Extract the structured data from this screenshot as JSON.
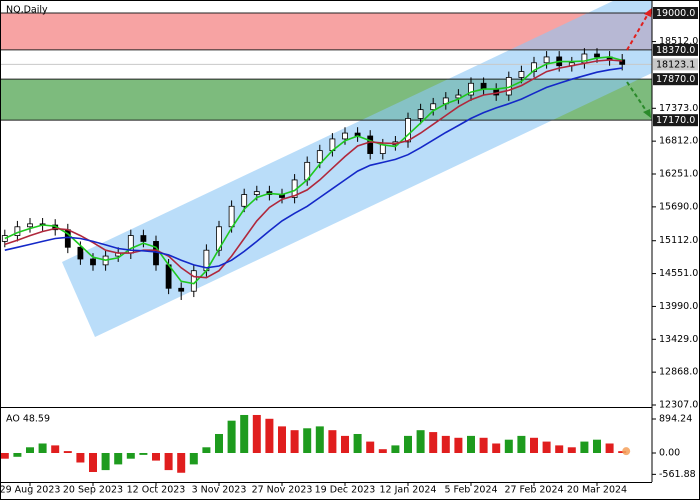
{
  "chart_data": [
    {
      "type": "candlestick",
      "title": "NQ,Daily",
      "categories": [
        null,
        null,
        "29 Aug 2023",
        null,
        null,
        null,
        null,
        "20 Sep 2023",
        null,
        null,
        null,
        null,
        "12 Oct 2023",
        null,
        null,
        null,
        null,
        "3 Nov 2023",
        null,
        null,
        null,
        null,
        "27 Nov 2023",
        null,
        null,
        null,
        null,
        "19 Dec 2023",
        null,
        null,
        null,
        null,
        "12 Jan 2024",
        null,
        null,
        null,
        null,
        "5 Feb 2024",
        null,
        null,
        null,
        null,
        "27 Feb 2024",
        null,
        null,
        null,
        null,
        "20 Mar 2024",
        null,
        null
      ],
      "open": [
        15100,
        15200,
        15350,
        15400,
        15380,
        15300,
        15000,
        14800,
        14700,
        14850,
        14900,
        15200,
        15100,
        14700,
        14300,
        14250,
        14600,
        14950,
        15350,
        15700,
        15900,
        15950,
        15900,
        15850,
        16150,
        16450,
        16650,
        16850,
        16950,
        16900,
        16600,
        16750,
        16800,
        17200,
        17350,
        17450,
        17550,
        17600,
        17800,
        17700,
        17600,
        17900,
        18000,
        18150,
        18250,
        18100,
        18150,
        18300,
        18250,
        18200
      ],
      "high": [
        15300,
        15450,
        15500,
        15500,
        15480,
        15400,
        15100,
        14900,
        14950,
        15000,
        15300,
        15300,
        15200,
        14800,
        14400,
        14700,
        15050,
        15450,
        15800,
        16000,
        16050,
        16050,
        16000,
        16250,
        16550,
        16750,
        16950,
        17050,
        17050,
        17000,
        16850,
        16900,
        17300,
        17450,
        17550,
        17650,
        17700,
        17900,
        17900,
        17800,
        18000,
        18100,
        18250,
        18350,
        18350,
        18250,
        18400,
        18400,
        18350,
        18300
      ],
      "low": [
        15000,
        15100,
        15250,
        15280,
        15200,
        14900,
        14700,
        14600,
        14600,
        14750,
        14800,
        15000,
        14600,
        14200,
        14100,
        14150,
        14500,
        14850,
        15250,
        15600,
        15800,
        15800,
        15750,
        15750,
        16050,
        16350,
        16550,
        16750,
        16800,
        16500,
        16500,
        16650,
        16700,
        17100,
        17250,
        17350,
        17450,
        17500,
        17600,
        17500,
        17500,
        17800,
        17900,
        18050,
        18000,
        18000,
        18050,
        18150,
        18100,
        18020
      ],
      "close": [
        15200,
        15350,
        15400,
        15380,
        15300,
        15000,
        14800,
        14700,
        14850,
        14900,
        15200,
        15100,
        14700,
        14300,
        14250,
        14600,
        14950,
        15350,
        15700,
        15900,
        15950,
        15900,
        15850,
        16150,
        16450,
        16650,
        16850,
        16950,
        16900,
        16600,
        16750,
        16800,
        17200,
        17350,
        17450,
        17550,
        17600,
        17800,
        17700,
        17600,
        17900,
        18000,
        18150,
        18250,
        18100,
        18150,
        18300,
        18250,
        18200,
        18123.1
      ],
      "up_color": "#ffffff",
      "down_color": "#000000",
      "series": [
        {
          "color": "#1ec81e",
          "values": [
            15150,
            15250,
            15320,
            15380,
            15360,
            15230,
            15030,
            14830,
            14780,
            14820,
            14980,
            15070,
            15000,
            14700,
            14420,
            14380,
            14600,
            14970,
            15330,
            15650,
            15850,
            15920,
            15900,
            15970,
            16150,
            16420,
            16650,
            16820,
            16900,
            16820,
            16750,
            16720,
            16920,
            17120,
            17330,
            17450,
            17530,
            17650,
            17700,
            17700,
            17730,
            17830,
            18020,
            18130,
            18170,
            18170,
            18180,
            18230,
            18250,
            18190
          ]
        },
        {
          "color": "#b0283c",
          "values": [
            15050,
            15120,
            15200,
            15270,
            15320,
            15300,
            15200,
            15080,
            14950,
            14900,
            14900,
            14950,
            14950,
            14850,
            14650,
            14500,
            14480,
            14600,
            14850,
            15150,
            15450,
            15680,
            15820,
            15880,
            15980,
            16150,
            16350,
            16550,
            16730,
            16800,
            16780,
            16770,
            16820,
            16950,
            17100,
            17250,
            17400,
            17520,
            17600,
            17630,
            17680,
            17760,
            17880,
            18000,
            18060,
            18100,
            18140,
            18180,
            18200,
            18180
          ]
        },
        {
          "color": "#1428c8",
          "values": [
            14950,
            15000,
            15050,
            15100,
            15150,
            15170,
            15150,
            15100,
            15040,
            14980,
            14950,
            14940,
            14920,
            14870,
            14780,
            14700,
            14650,
            14680,
            14780,
            14930,
            15100,
            15280,
            15450,
            15580,
            15700,
            15850,
            16000,
            16150,
            16300,
            16400,
            16450,
            16500,
            16580,
            16700,
            16830,
            16960,
            17080,
            17200,
            17300,
            17380,
            17450,
            17530,
            17630,
            17730,
            17800,
            17870,
            17930,
            17990,
            18030,
            18060
          ]
        }
      ],
      "zones": [
        {
          "from": 18370,
          "to": 19000,
          "color": "#f7a3a3"
        },
        {
          "from": 17170,
          "to": 17870,
          "color": "#7dbb7d"
        }
      ],
      "levels": [
        {
          "value": 19000,
          "label": "19000.0"
        },
        {
          "value": 18370,
          "label": "18370.0"
        },
        {
          "value": 17870,
          "label": "17870.0"
        },
        {
          "value": 17170,
          "label": "17170.0"
        }
      ],
      "level_color": "#1a1a1a",
      "last_price_color": "#c8c8c8",
      "ylim": [
        12273,
        19222
      ],
      "yticks": [
        {
          "value": 12307,
          "label": "12307.0"
        },
        {
          "value": 12868,
          "label": "12868.0"
        },
        {
          "value": 13429,
          "label": "13429.0"
        },
        {
          "value": 13990,
          "label": "13990.0"
        },
        {
          "value": 14551,
          "label": "14551.0"
        },
        {
          "value": 15112,
          "label": "15112.0"
        },
        {
          "value": 15690,
          "label": "15690.0"
        },
        {
          "value": 16251,
          "label": "16251.0"
        },
        {
          "value": 16812,
          "label": "16812.0"
        },
        {
          "value": 17373,
          "label": "17373.0"
        },
        {
          "value": 18512,
          "label": "18512.0"
        }
      ]
    },
    {
      "type": "histogram-oscillator",
      "title": "AO 48.59",
      "values": [
        -150,
        -100,
        150,
        250,
        200,
        50,
        -250,
        -500,
        -450,
        -300,
        -150,
        -50,
        -200,
        -450,
        -520,
        -300,
        150,
        500,
        850,
        1000,
        1000,
        900,
        700,
        600,
        650,
        700,
        600,
        450,
        500,
        300,
        100,
        200,
        450,
        600,
        550,
        450,
        400,
        450,
        400,
        250,
        350,
        450,
        400,
        300,
        200,
        150,
        300,
        350,
        250,
        48.59
      ],
      "up_color": "#1e9b1e",
      "down_color": "#e01e1e",
      "marker_color": "#f5a05a",
      "ylim": [
        -763,
        1131
      ],
      "yticks": [
        -561.88,
        {
          "value": 0,
          "label": "0.00"
        },
        894.24
      ]
    }
  ]
}
